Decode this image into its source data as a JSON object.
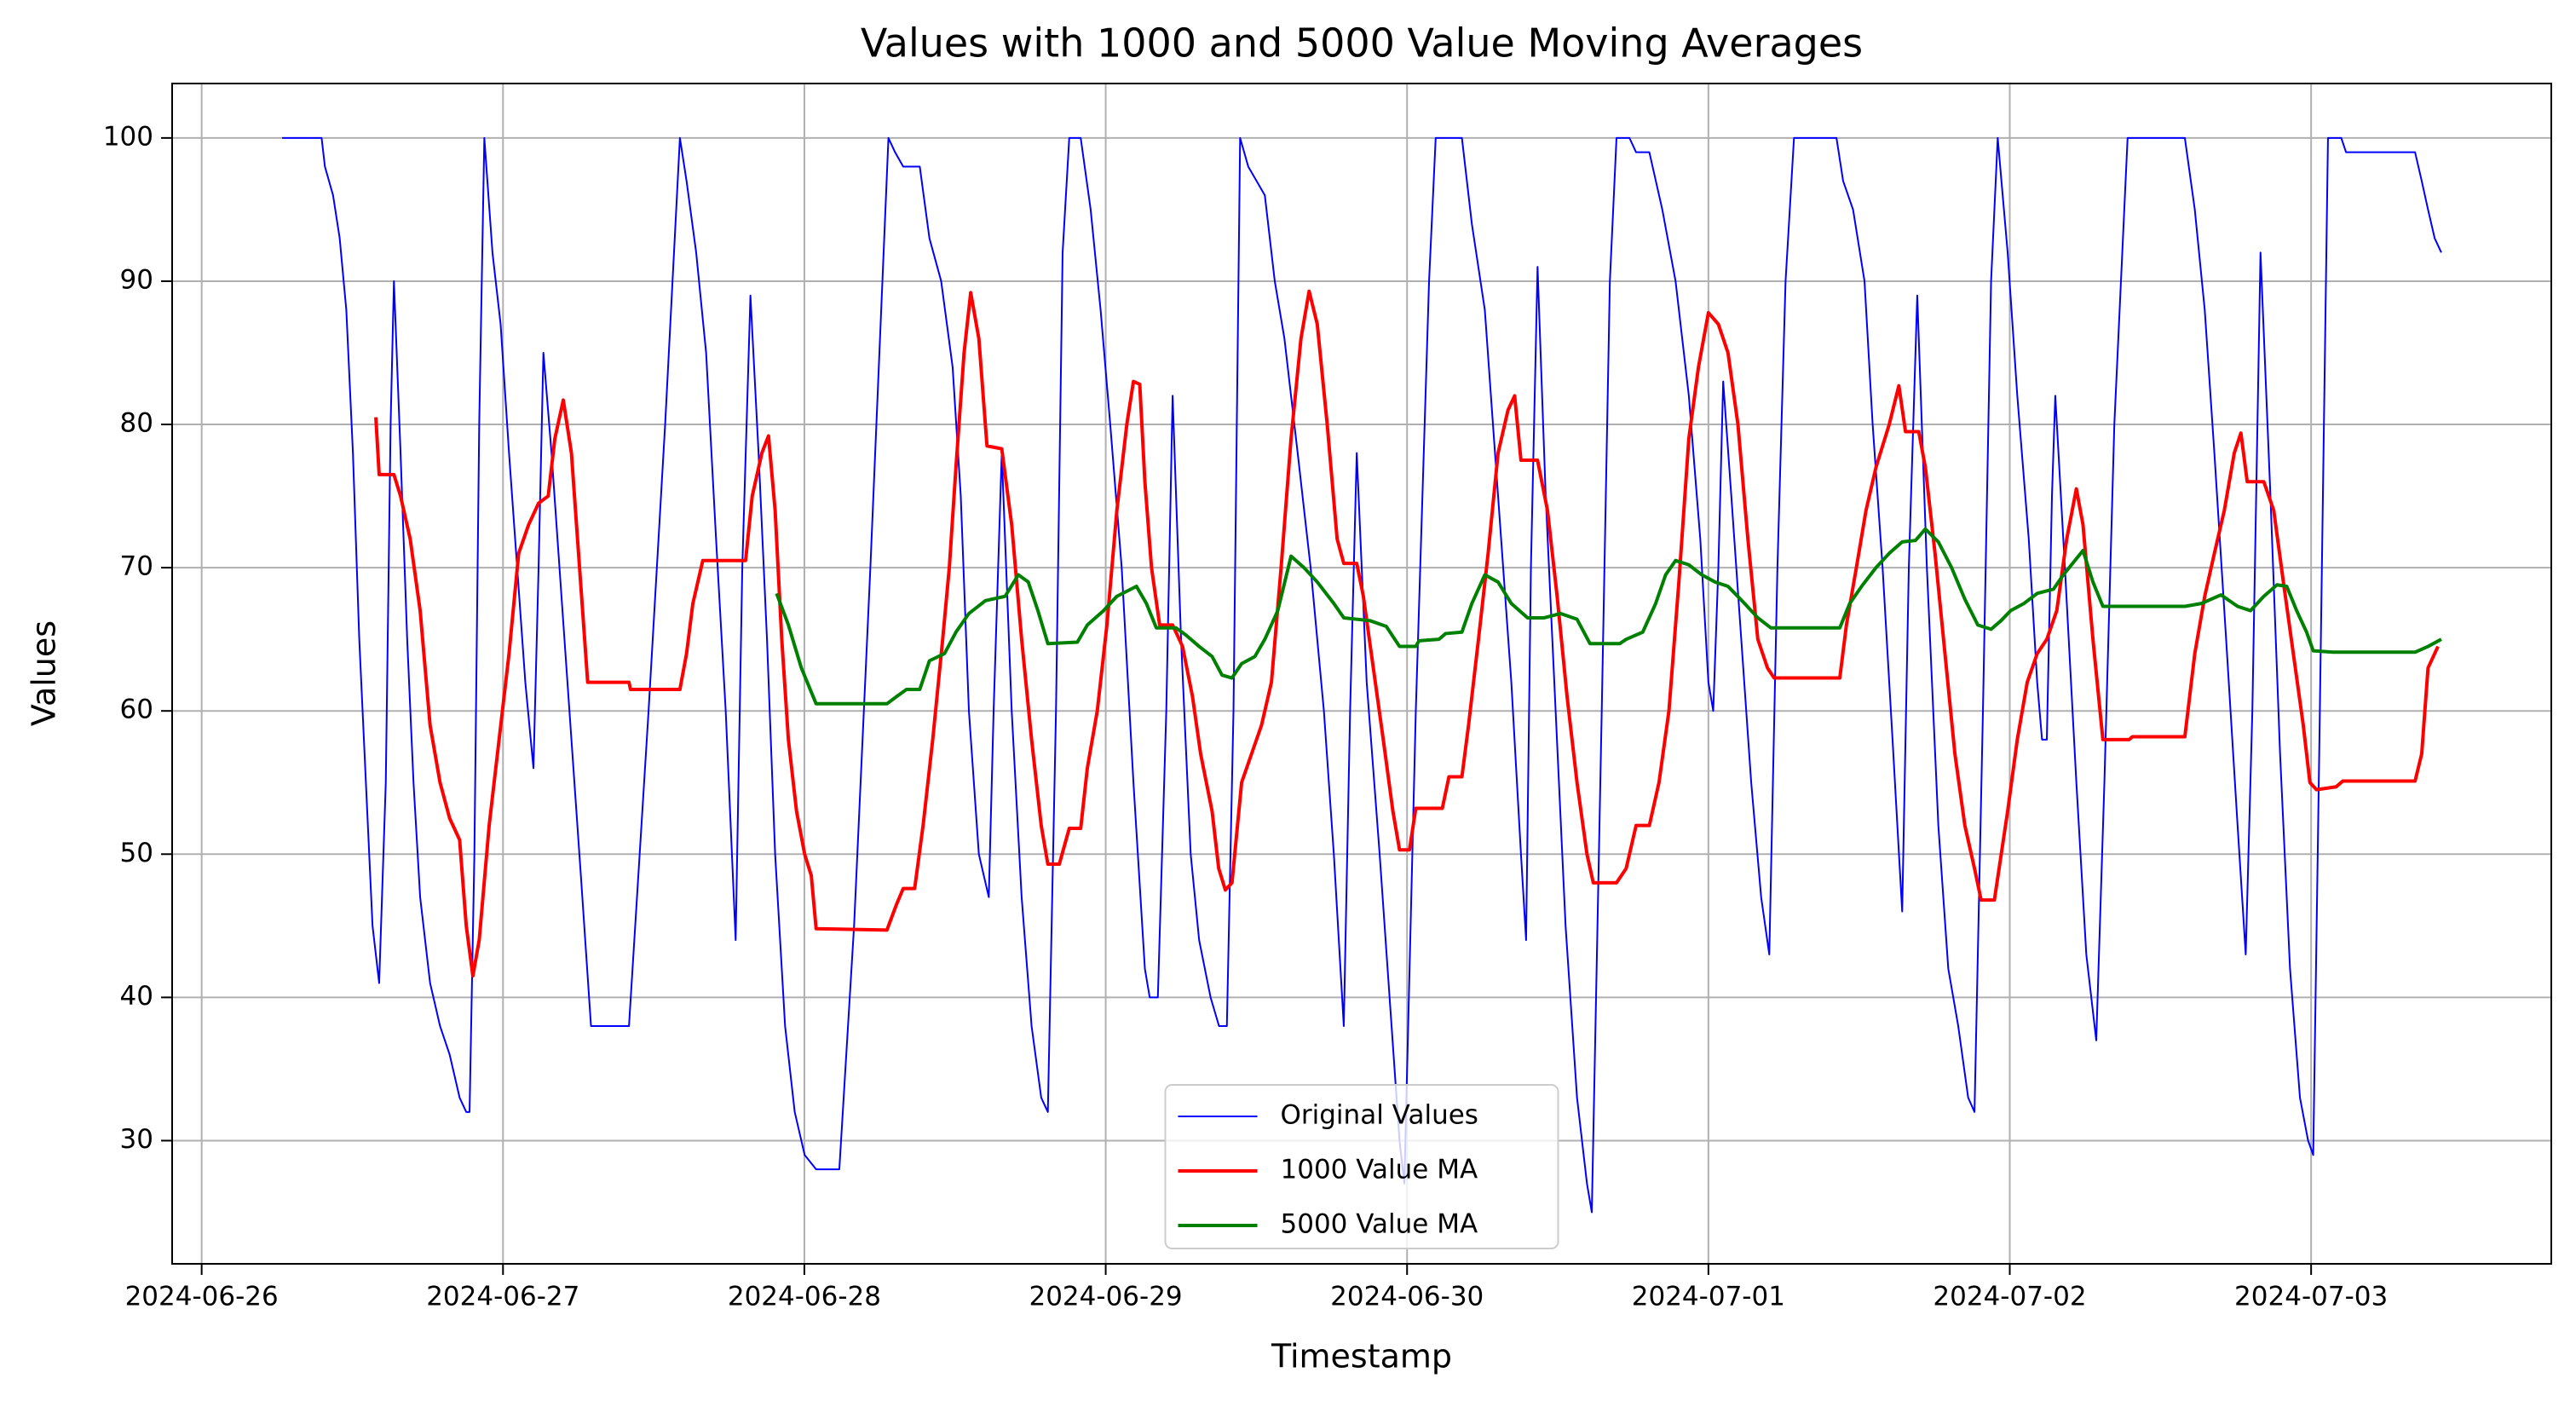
{
  "chart_data": {
    "type": "line",
    "title": "Values with 1000 and 5000 Value Moving Averages",
    "x_label": "Timestamp",
    "y_label": "Values",
    "xlim": [
      -0.098,
      7.797
    ],
    "ylim": [
      21.4,
      103.8
    ],
    "xticks": [
      {
        "value": 0,
        "label": "2024-06-26"
      },
      {
        "value": 1,
        "label": "2024-06-27"
      },
      {
        "value": 2,
        "label": "2024-06-28"
      },
      {
        "value": 3,
        "label": "2024-06-29"
      },
      {
        "value": 4,
        "label": "2024-06-30"
      },
      {
        "value": 5,
        "label": "2024-07-01"
      },
      {
        "value": 6,
        "label": "2024-07-02"
      },
      {
        "value": 7,
        "label": "2024-07-03"
      }
    ],
    "yticks": [
      30,
      40,
      50,
      60,
      70,
      80,
      90,
      100
    ],
    "grid": true,
    "legend": "lower center",
    "series": [
      {
        "name": "Original Values",
        "color": "#0000ff",
        "linewidth": 2,
        "x": [
          0.267,
          0.398,
          0.409,
          0.436,
          0.458,
          0.48,
          0.502,
          0.523,
          0.545,
          0.567,
          0.589,
          0.611,
          0.627,
          0.638,
          0.66,
          0.682,
          0.703,
          0.725,
          0.758,
          0.791,
          0.823,
          0.856,
          0.878,
          0.889,
          0.905,
          0.921,
          0.938,
          0.965,
          0.992,
          1.02,
          1.047,
          1.074,
          1.101,
          1.118,
          1.134,
          1.161,
          1.194,
          1.227,
          1.26,
          1.292,
          1.347,
          1.418,
          1.483,
          1.538,
          1.587,
          1.609,
          1.641,
          1.674,
          1.707,
          1.739,
          1.772,
          1.794,
          1.821,
          1.848,
          1.876,
          1.903,
          1.936,
          1.968,
          2.001,
          2.039,
          2.116,
          2.165,
          2.219,
          2.279,
          2.301,
          2.328,
          2.383,
          2.415,
          2.454,
          2.492,
          2.519,
          2.546,
          2.579,
          2.612,
          2.628,
          2.655,
          2.688,
          2.721,
          2.754,
          2.786,
          2.808,
          2.835,
          2.857,
          2.879,
          2.917,
          2.95,
          2.983,
          3.015,
          3.053,
          3.092,
          3.13,
          3.146,
          3.173,
          3.201,
          3.222,
          3.25,
          3.282,
          3.31,
          3.348,
          3.376,
          3.402,
          3.424,
          3.446,
          3.473,
          3.528,
          3.561,
          3.593,
          3.637,
          3.68,
          3.724,
          3.757,
          3.79,
          3.811,
          3.833,
          3.866,
          3.909,
          3.942,
          3.975,
          3.991,
          4.029,
          4.073,
          4.095,
          4.182,
          4.215,
          4.258,
          4.302,
          4.346,
          4.378,
          4.395,
          4.411,
          4.433,
          4.46,
          4.493,
          4.526,
          4.564,
          4.597,
          4.613,
          4.646,
          4.673,
          4.695,
          4.738,
          4.76,
          4.804,
          4.847,
          4.891,
          4.935,
          4.973,
          5.0,
          5.016,
          5.033,
          5.049,
          5.076,
          5.109,
          5.142,
          5.175,
          5.202,
          5.229,
          5.256,
          5.284,
          5.425,
          5.447,
          5.48,
          5.518,
          5.545,
          5.578,
          5.611,
          5.643,
          5.665,
          5.693,
          5.725,
          5.763,
          5.796,
          5.829,
          5.862,
          5.883,
          5.911,
          5.938,
          5.96,
          5.993,
          6.025,
          6.063,
          6.091,
          6.107,
          6.123,
          6.14,
          6.151,
          6.183,
          6.221,
          6.254,
          6.287,
          6.314,
          6.347,
          6.391,
          6.581,
          6.614,
          6.647,
          6.679,
          6.718,
          6.756,
          6.783,
          6.805,
          6.832,
          6.865,
          6.897,
          6.93,
          6.963,
          6.99,
          7.007,
          7.029,
          7.056,
          7.1,
          7.116,
          7.345,
          7.367,
          7.388,
          7.41,
          7.432
        ],
        "values": [
          100,
          100,
          98,
          96,
          93,
          88,
          78,
          65,
          55,
          45,
          41,
          55,
          80,
          90,
          78,
          65,
          55,
          47,
          41,
          38,
          36,
          33,
          32,
          32,
          50,
          80,
          100,
          92,
          87,
          78,
          70,
          62,
          56,
          70,
          85,
          78,
          68,
          58,
          48,
          38,
          38,
          38,
          60,
          80,
          100,
          97,
          92,
          85,
          72,
          60,
          44,
          70,
          89,
          78,
          65,
          50,
          38,
          32,
          29,
          28,
          28,
          45,
          70,
          100,
          99,
          98,
          98,
          93,
          90,
          84,
          75,
          60,
          50,
          47,
          60,
          78,
          60,
          47,
          38,
          33,
          32,
          60,
          92,
          100,
          100,
          95,
          88,
          80,
          70,
          55,
          42,
          40,
          40,
          60,
          82,
          65,
          50,
          44,
          40,
          38,
          38,
          60,
          100,
          98,
          96,
          90,
          86,
          78,
          70,
          60,
          50,
          38,
          60,
          78,
          62,
          50,
          40,
          30,
          27,
          60,
          90,
          100,
          100,
          94,
          88,
          75,
          62,
          50,
          44,
          70,
          91,
          75,
          60,
          45,
          33,
          27,
          25,
          60,
          90,
          100,
          100,
          99,
          99,
          95,
          90,
          82,
          72,
          62,
          60,
          70,
          83,
          75,
          65,
          55,
          47,
          43,
          70,
          90,
          100,
          100,
          97,
          95,
          90,
          80,
          70,
          58,
          46,
          70,
          89,
          70,
          52,
          42,
          38,
          33,
          32,
          60,
          90,
          100,
          92,
          82,
          72,
          62,
          58,
          58,
          75,
          82,
          70,
          55,
          43,
          37,
          55,
          80,
          100,
          100,
          95,
          88,
          78,
          65,
          52,
          43,
          60,
          92,
          75,
          57,
          42,
          33,
          30,
          29,
          60,
          100,
          100,
          99,
          99,
          97,
          95,
          93,
          92
        ]
      },
      {
        "name": "1000 Value MA",
        "color": "#ff0000",
        "linewidth": 4,
        "x": [
          0.578,
          0.589,
          0.638,
          0.66,
          0.692,
          0.725,
          0.758,
          0.791,
          0.823,
          0.856,
          0.878,
          0.9,
          0.921,
          0.954,
          0.987,
          1.02,
          1.052,
          1.085,
          1.118,
          1.15,
          1.172,
          1.2,
          1.227,
          1.254,
          1.281,
          1.418,
          1.423,
          1.587,
          1.609,
          1.63,
          1.663,
          1.761,
          1.805,
          1.827,
          1.859,
          1.881,
          1.903,
          1.925,
          1.947,
          1.974,
          2.001,
          2.023,
          2.039,
          2.274,
          2.306,
          2.328,
          2.366,
          2.394,
          2.426,
          2.459,
          2.481,
          2.503,
          2.53,
          2.552,
          2.579,
          2.606,
          2.655,
          2.688,
          2.721,
          2.754,
          2.786,
          2.808,
          2.846,
          2.879,
          2.917,
          2.939,
          2.972,
          3.004,
          3.037,
          3.07,
          3.092,
          3.113,
          3.13,
          3.152,
          3.179,
          3.222,
          3.255,
          3.288,
          3.315,
          3.353,
          3.375,
          3.397,
          3.419,
          3.451,
          3.484,
          3.517,
          3.55,
          3.582,
          3.615,
          3.648,
          3.675,
          3.702,
          3.735,
          3.768,
          3.79,
          3.833,
          3.855,
          3.888,
          3.921,
          3.953,
          3.975,
          4.008,
          4.029,
          4.117,
          4.139,
          4.182,
          4.204,
          4.237,
          4.269,
          4.302,
          4.335,
          4.357,
          4.378,
          4.433,
          4.466,
          4.498,
          4.531,
          4.564,
          4.597,
          4.618,
          4.695,
          4.727,
          4.76,
          4.804,
          4.836,
          4.869,
          4.902,
          4.935,
          4.967,
          5.0,
          5.033,
          5.065,
          5.098,
          5.131,
          5.164,
          5.196,
          5.218,
          5.436,
          5.458,
          5.491,
          5.523,
          5.556,
          5.6,
          5.632,
          5.654,
          5.698,
          5.72,
          5.752,
          5.785,
          5.818,
          5.851,
          5.883,
          5.905,
          5.949,
          5.993,
          6.025,
          6.058,
          6.091,
          6.123,
          6.156,
          6.189,
          6.221,
          6.243,
          6.276,
          6.309,
          6.396,
          6.407,
          6.581,
          6.614,
          6.647,
          6.679,
          6.712,
          6.745,
          6.767,
          6.788,
          6.843,
          6.876,
          6.908,
          6.941,
          6.974,
          6.996,
          7.018,
          7.083,
          7.105,
          7.345,
          7.367,
          7.388,
          7.421
        ],
        "values": [
          80.5,
          76.5,
          76.5,
          75,
          72,
          67,
          59,
          55,
          52.5,
          51,
          45,
          41.5,
          44,
          52,
          58,
          64,
          71,
          73,
          74.5,
          75,
          79,
          81.7,
          78,
          70,
          62,
          62,
          61.5,
          61.5,
          64,
          67.5,
          70.5,
          70.5,
          70.5,
          75,
          78,
          79.2,
          74,
          65,
          58,
          53,
          50,
          48.5,
          44.8,
          44.7,
          46.5,
          47.6,
          47.6,
          52,
          58,
          65,
          70,
          77,
          85,
          89.2,
          86,
          78.5,
          78.3,
          73,
          65,
          58,
          52,
          49.3,
          49.3,
          51.8,
          51.8,
          56,
          60,
          66,
          74,
          80,
          83,
          82.8,
          76,
          70,
          66,
          66,
          64.5,
          61,
          57,
          53,
          49,
          47.5,
          48,
          55,
          57,
          59,
          62,
          70,
          79,
          86,
          89.3,
          87,
          80,
          72,
          70.3,
          70.3,
          68,
          63,
          58,
          53,
          50.3,
          50.3,
          53.2,
          53.2,
          55.4,
          55.4,
          59,
          65,
          71,
          78,
          81,
          82,
          77.5,
          77.5,
          74,
          68,
          61,
          55,
          50,
          48,
          48,
          49,
          52,
          52,
          55,
          60,
          69,
          79,
          84,
          87.8,
          87,
          85,
          80,
          72,
          65,
          63,
          62.3,
          62.3,
          66,
          70,
          74,
          77,
          80,
          82.7,
          79.5,
          79.5,
          77,
          71,
          64,
          57,
          52,
          49,
          46.8,
          46.8,
          53,
          58,
          62,
          64,
          65,
          67,
          72,
          75.5,
          73,
          65,
          58,
          58,
          58.2,
          58.2,
          64,
          68,
          71,
          74,
          78,
          79.4,
          76,
          76,
          74,
          69,
          64,
          59,
          55,
          54.5,
          54.7,
          55.1,
          55.1,
          57,
          63,
          64.5
        ]
      },
      {
        "name": "5000 Value MA",
        "color": "#008000",
        "linewidth": 4,
        "x": [
          1.908,
          1.947,
          1.99,
          2.039,
          2.274,
          2.306,
          2.339,
          2.383,
          2.415,
          2.465,
          2.503,
          2.546,
          2.601,
          2.666,
          2.71,
          2.743,
          2.775,
          2.808,
          2.906,
          2.939,
          2.993,
          3.037,
          3.102,
          3.135,
          3.168,
          3.233,
          3.266,
          3.31,
          3.353,
          3.386,
          3.419,
          3.451,
          3.495,
          3.528,
          3.571,
          3.615,
          3.658,
          3.702,
          3.757,
          3.79,
          3.877,
          3.931,
          3.975,
          4.029,
          4.04,
          4.106,
          4.128,
          4.182,
          4.215,
          4.258,
          4.302,
          4.346,
          4.4,
          4.455,
          4.509,
          4.564,
          4.607,
          4.706,
          4.727,
          4.782,
          4.825,
          4.858,
          4.891,
          4.935,
          4.978,
          5.022,
          5.065,
          5.12,
          5.164,
          5.207,
          5.436,
          5.469,
          5.512,
          5.556,
          5.6,
          5.643,
          5.687,
          5.72,
          5.763,
          5.807,
          5.851,
          5.894,
          5.938,
          5.971,
          6.003,
          6.047,
          6.091,
          6.145,
          6.178,
          6.243,
          6.276,
          6.309,
          6.581,
          6.636,
          6.701,
          6.756,
          6.799,
          6.843,
          6.887,
          6.919,
          6.952,
          6.985,
          7.007,
          7.072,
          7.345,
          7.388,
          7.432
        ],
        "values": [
          68.2,
          66,
          63,
          60.5,
          60.5,
          61,
          61.5,
          61.5,
          63.5,
          64,
          65.5,
          66.8,
          67.7,
          68,
          69.5,
          69,
          67,
          64.7,
          64.8,
          66,
          67,
          68,
          68.7,
          67.5,
          65.8,
          65.8,
          65.3,
          64.5,
          63.8,
          62.5,
          62.3,
          63.3,
          63.8,
          65,
          67,
          70.8,
          70,
          69,
          67.5,
          66.5,
          66.3,
          65.9,
          64.5,
          64.5,
          64.9,
          65,
          65.4,
          65.5,
          67.5,
          69.5,
          69,
          67.5,
          66.5,
          66.5,
          66.8,
          66.4,
          64.7,
          64.7,
          65,
          65.5,
          67.5,
          69.5,
          70.5,
          70.2,
          69.5,
          69,
          68.7,
          67.5,
          66.5,
          65.8,
          65.8,
          67.5,
          68.8,
          70,
          71,
          71.8,
          71.9,
          72.7,
          71.8,
          70,
          67.8,
          66,
          65.7,
          66.3,
          67,
          67.5,
          68.2,
          68.5,
          69.5,
          71.2,
          69,
          67.3,
          67.3,
          67.5,
          68.1,
          67.3,
          67,
          68,
          68.8,
          68.7,
          67,
          65.5,
          64.2,
          64.1,
          64.1,
          64.5,
          65
        ]
      }
    ]
  }
}
